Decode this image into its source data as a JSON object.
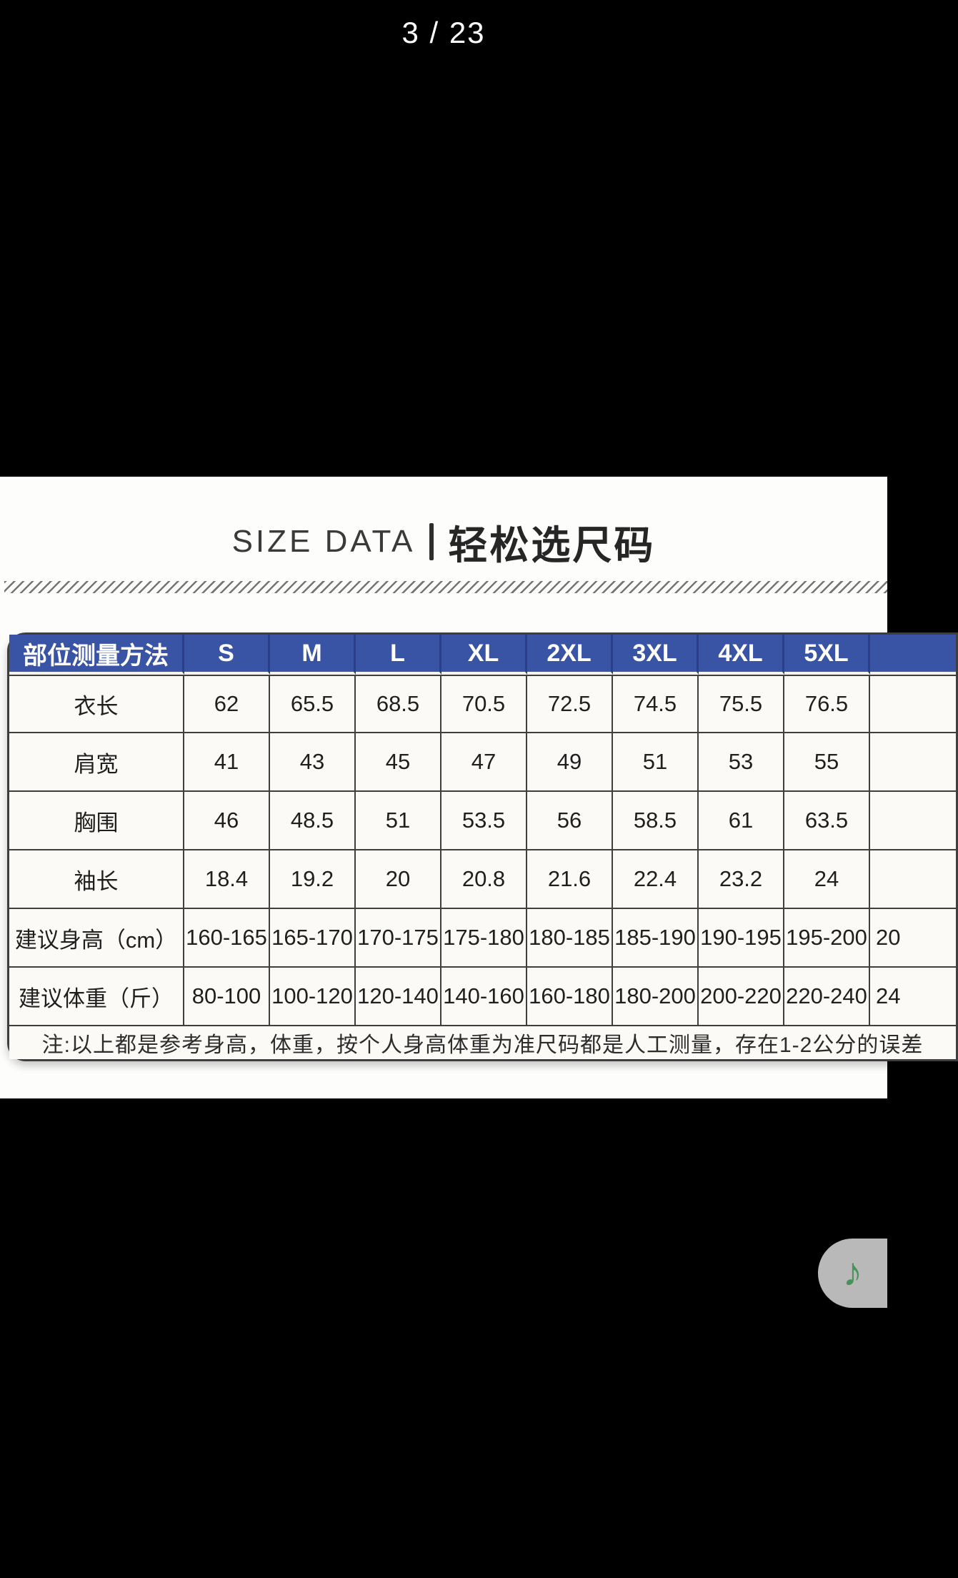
{
  "viewer": {
    "page_indicator": "3 / 23"
  },
  "size_chart": {
    "title_en": "SIZE DATA",
    "title_zh": "轻松选尺码",
    "columns": [
      "部位测量方法",
      "S",
      "M",
      "L",
      "XL",
      "2XL",
      "3XL",
      "4XL",
      "5XL",
      ""
    ],
    "rows": [
      {
        "label": "衣长",
        "values": [
          "62",
          "65.5",
          "68.5",
          "70.5",
          "72.5",
          "74.5",
          "75.5",
          "76.5",
          ""
        ]
      },
      {
        "label": "肩宽",
        "values": [
          "41",
          "43",
          "45",
          "47",
          "49",
          "51",
          "53",
          "55",
          ""
        ]
      },
      {
        "label": "胸围",
        "values": [
          "46",
          "48.5",
          "51",
          "53.5",
          "56",
          "58.5",
          "61",
          "63.5",
          ""
        ]
      },
      {
        "label": "袖长",
        "values": [
          "18.4",
          "19.2",
          "20",
          "20.8",
          "21.6",
          "22.4",
          "23.2",
          "24",
          ""
        ]
      },
      {
        "label": "建议身高（cm）",
        "values": [
          "160-165",
          "165-170",
          "170-175",
          "175-180",
          "180-185",
          "185-190",
          "190-195",
          "195-200",
          "20"
        ]
      },
      {
        "label": "建议体重（斤）",
        "values": [
          "80-100",
          "100-120",
          "120-140",
          "140-160",
          "160-180",
          "180-200",
          "200-220",
          "220-240",
          "24"
        ]
      }
    ],
    "note": "注:以上都是参考身高，体重，按个人身高体重为准尺码都是人工测量，存在1-2公分的误差",
    "colors": {
      "header_bg": "#3a54a5",
      "header_line": "#2b4084",
      "cell_bg": "#fbfaf6",
      "border": "#3e3e3e"
    }
  },
  "music_button": {
    "icon": "music-note",
    "glyph": "♪",
    "bg": "#b9b9b9",
    "note_color": "#47945a"
  }
}
